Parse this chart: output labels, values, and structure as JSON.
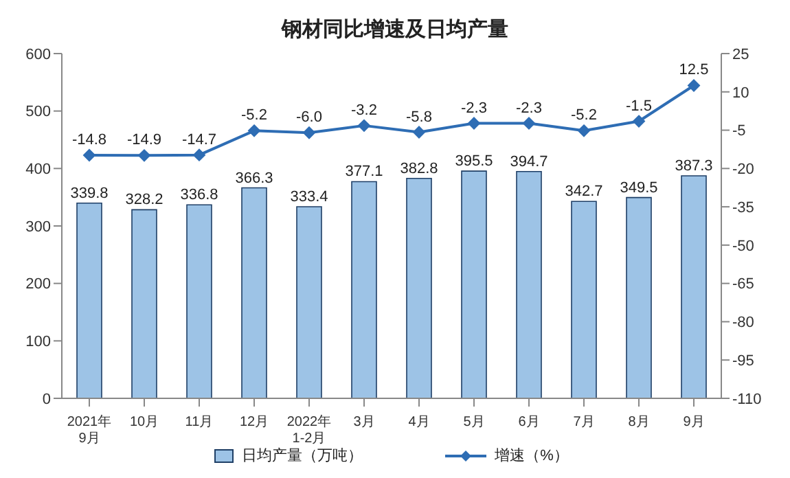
{
  "chart_data": {
    "type": "bar",
    "title": "钢材同比增速及日均产量",
    "categories": [
      "2021年\n9月",
      "10月",
      "11月",
      "12月",
      "2022年\n1-2月",
      "3月",
      "4月",
      "5月",
      "6月",
      "7月",
      "8月",
      "9月"
    ],
    "series": [
      {
        "name": "日均产量（万吨）",
        "color": "#9dc3e6",
        "values": [
          339.8,
          328.2,
          336.8,
          366.3,
          333.4,
          377.1,
          382.8,
          395.5,
          394.7,
          342.7,
          349.5,
          387.3
        ]
      },
      {
        "name": "增速（%）",
        "type": "line",
        "axis": "y2",
        "color": "#2e6db4",
        "marker": "diamond",
        "values": [
          -14.8,
          -14.9,
          -14.7,
          -5.2,
          -6.0,
          -3.2,
          -5.8,
          -2.3,
          -2.3,
          -5.2,
          -1.5,
          12.5
        ],
        "value_labels": [
          "-14.8",
          "-14.9",
          "-14.7",
          "-5.2",
          "-6.0",
          "-3.2",
          "-5.8",
          "-2.3",
          "-2.3",
          "-5.2",
          "-1.5",
          "12.5"
        ]
      }
    ],
    "ylim": [
      0,
      600
    ],
    "yticks": [
      0,
      100,
      200,
      300,
      400,
      500,
      600
    ],
    "y2lim": [
      -110,
      25
    ],
    "y2ticks": [
      -110,
      -95,
      -80,
      -65,
      -50,
      -35,
      -20,
      -5,
      10,
      25
    ],
    "data_labels": true,
    "legend": "bottom",
    "grid": false
  }
}
